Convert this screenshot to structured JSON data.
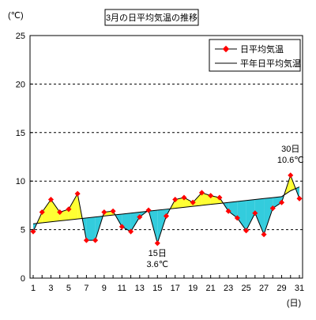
{
  "chart_data": {
    "type": "line",
    "title": "3月の日平均気温の推移",
    "y_unit": "(℃)",
    "x_unit": "(日)",
    "ylim": [
      0,
      25
    ],
    "yticks": [
      0,
      5,
      10,
      15,
      20,
      25
    ],
    "xlim": [
      1,
      31
    ],
    "xticks": [
      1,
      3,
      5,
      7,
      9,
      11,
      13,
      15,
      17,
      19,
      21,
      23,
      25,
      27,
      29,
      31
    ],
    "grid": "horizontal-dashed",
    "legend_position": "top-right",
    "colors": {
      "daily_line": "#000000",
      "daily_marker": "#ff0000",
      "normal_line": "#000000",
      "above_fill": "#ffff33",
      "below_fill": "#33ccdd"
    },
    "series": [
      {
        "name": "日平均気温",
        "x": [
          1,
          2,
          3,
          4,
          5,
          6,
          7,
          8,
          9,
          10,
          11,
          12,
          13,
          14,
          15,
          16,
          17,
          18,
          19,
          20,
          21,
          22,
          23,
          24,
          25,
          26,
          27,
          28,
          29,
          30,
          31
        ],
        "values": [
          4.8,
          6.8,
          8.1,
          6.8,
          7.1,
          8.7,
          3.9,
          3.9,
          6.8,
          6.9,
          5.3,
          4.8,
          6.3,
          7.0,
          3.6,
          6.4,
          8.1,
          8.3,
          7.8,
          8.8,
          8.5,
          8.3,
          6.9,
          6.2,
          4.9,
          6.7,
          4.5,
          7.2,
          7.8,
          10.6,
          8.2
        ]
      },
      {
        "name": "平年日平均気温",
        "x": [
          1,
          2,
          3,
          4,
          5,
          6,
          7,
          8,
          9,
          10,
          11,
          12,
          13,
          14,
          15,
          16,
          17,
          18,
          19,
          20,
          21,
          22,
          23,
          24,
          25,
          26,
          27,
          28,
          29,
          30,
          31
        ],
        "values": [
          5.6,
          5.7,
          5.8,
          5.9,
          6.0,
          6.1,
          6.2,
          6.3,
          6.4,
          6.5,
          6.6,
          6.7,
          6.8,
          6.9,
          7.0,
          7.1,
          7.2,
          7.3,
          7.4,
          7.5,
          7.6,
          7.7,
          7.8,
          7.9,
          8.0,
          8.1,
          8.2,
          8.3,
          8.4,
          9.0,
          9.4
        ]
      }
    ],
    "annotations": [
      {
        "day": 15,
        "text_line1": "15日",
        "text_line2": "3.6℃"
      },
      {
        "day": 30,
        "text_line1": "30日",
        "text_line2": "10.6℃"
      }
    ]
  }
}
